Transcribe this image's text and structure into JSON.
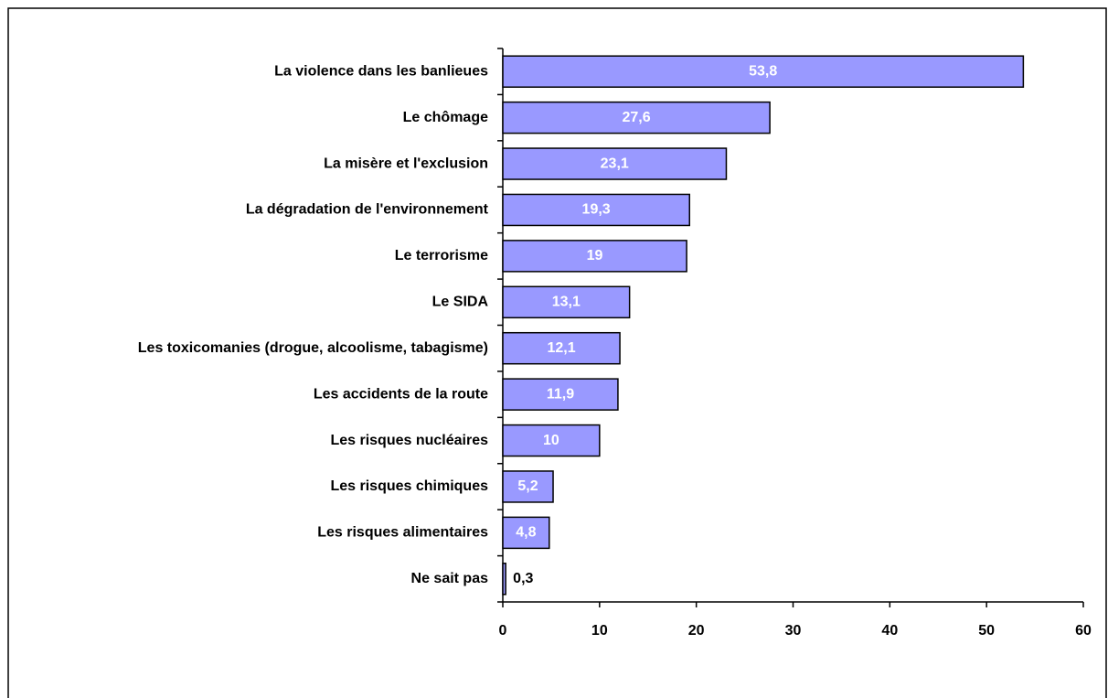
{
  "chart_data": {
    "type": "barh",
    "categories": [
      "La violence dans les banlieues",
      "Le chômage",
      "La misère et l'exclusion",
      "La dégradation de l'environnement",
      "Le terrorisme",
      "Le SIDA",
      "Les toxicomanies (drogue, alcoolisme, tabagisme)",
      "Les accidents de la route",
      "Les risques nucléaires",
      "Les risques chimiques",
      "Les risques alimentaires",
      "Ne sait pas"
    ],
    "values": [
      53.8,
      27.6,
      23.1,
      19.3,
      19,
      13.1,
      12.1,
      11.9,
      10,
      5.2,
      4.8,
      0.3
    ],
    "value_labels": [
      "53,8",
      "27,6",
      "23,1",
      "19,3",
      "19",
      "13,1",
      "12,1",
      "11,9",
      "10",
      "5,2",
      "4,8",
      "0,3"
    ],
    "color": "#9999ff",
    "xlim": [
      0,
      60
    ],
    "xticks": [
      0,
      10,
      20,
      30,
      40,
      50,
      60
    ],
    "grid": false
  }
}
